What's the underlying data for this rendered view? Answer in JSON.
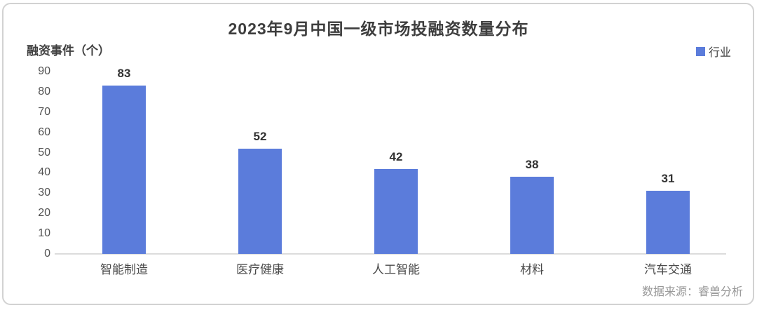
{
  "chart_data": {
    "type": "bar",
    "title": "2023年9月中国一级市场投融资数量分布",
    "ylabel": "融资事件（个）",
    "categories": [
      "智能制造",
      "医疗健康",
      "人工智能",
      "材料",
      "汽车交通"
    ],
    "values": [
      83,
      52,
      42,
      38,
      31
    ],
    "series_name": "行业",
    "ylim": [
      0,
      90
    ],
    "yticks": [
      0,
      10,
      20,
      30,
      40,
      50,
      60,
      70,
      80,
      90
    ],
    "grid": false,
    "legend_position": "top-right",
    "bar_color": "#5b7cdb"
  },
  "legend": {
    "label": "行业",
    "swatch_color": "#5b7cdb"
  },
  "source": "数据来源：睿兽分析"
}
